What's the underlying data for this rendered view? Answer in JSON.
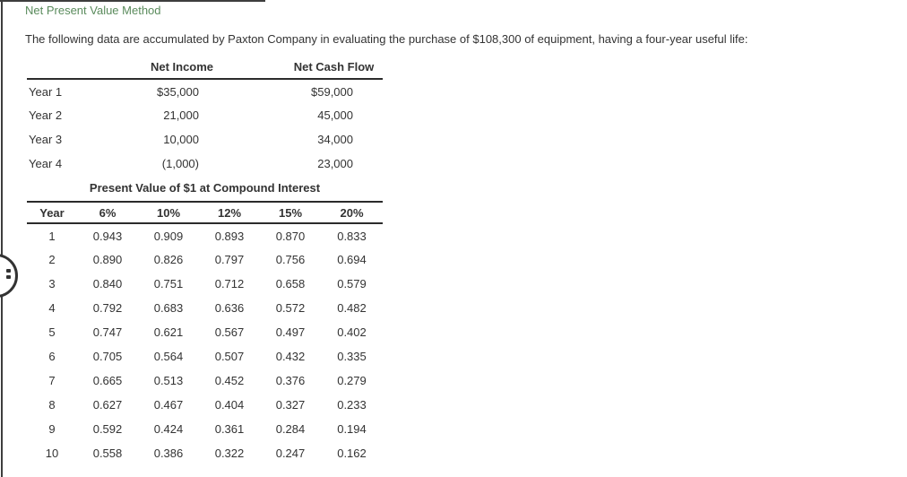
{
  "page": {
    "title": "Net Present Value Method",
    "intro": "The following data are accumulated by Paxton Company in evaluating the purchase of $108,300 of equipment, having a four-year useful life:"
  },
  "income_table": {
    "columns": {
      "net_income": "Net Income",
      "net_cash_flow": "Net Cash Flow"
    },
    "rows": [
      {
        "label": "Year 1",
        "net_income": "$35,000",
        "net_cash_flow": "$59,000"
      },
      {
        "label": "Year 2",
        "net_income": "21,000",
        "net_cash_flow": "45,000"
      },
      {
        "label": "Year 3",
        "net_income": "10,000",
        "net_cash_flow": "34,000"
      },
      {
        "label": "Year 4",
        "net_income": "(1,000)",
        "net_cash_flow": "23,000"
      }
    ]
  },
  "pv_table": {
    "title": "Present Value of $1 at Compound Interest",
    "columns": [
      "Year",
      "6%",
      "10%",
      "12%",
      "15%",
      "20%"
    ],
    "rows": [
      [
        "1",
        "0.943",
        "0.909",
        "0.893",
        "0.870",
        "0.833"
      ],
      [
        "2",
        "0.890",
        "0.826",
        "0.797",
        "0.756",
        "0.694"
      ],
      [
        "3",
        "0.840",
        "0.751",
        "0.712",
        "0.658",
        "0.579"
      ],
      [
        "4",
        "0.792",
        "0.683",
        "0.636",
        "0.572",
        "0.482"
      ],
      [
        "5",
        "0.747",
        "0.621",
        "0.567",
        "0.497",
        "0.402"
      ],
      [
        "6",
        "0.705",
        "0.564",
        "0.507",
        "0.432",
        "0.335"
      ],
      [
        "7",
        "0.665",
        "0.513",
        "0.452",
        "0.376",
        "0.279"
      ],
      [
        "8",
        "0.627",
        "0.467",
        "0.404",
        "0.327",
        "0.233"
      ],
      [
        "9",
        "0.592",
        "0.424",
        "0.361",
        "0.284",
        "0.194"
      ],
      [
        "10",
        "0.558",
        "0.386",
        "0.322",
        "0.247",
        "0.162"
      ]
    ]
  },
  "colors": {
    "title_green": "#5a8b5c",
    "body_text": "#333333",
    "rule_line": "#2b2b2b"
  }
}
